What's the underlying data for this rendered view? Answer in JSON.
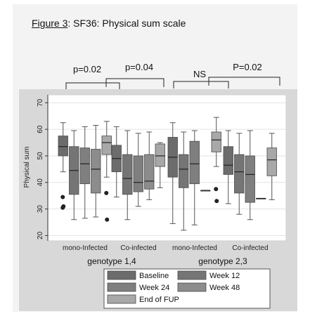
{
  "figure": {
    "label": "Figure 3",
    "caption": ": SF36: Physical sum scale"
  },
  "comparisons": [
    {
      "label": "p=0.02"
    },
    {
      "label": "p=0.04"
    },
    {
      "label": "NS"
    },
    {
      "label": "P=0.02"
    }
  ],
  "chart_data": {
    "type": "box",
    "ylabel": "Physical sum",
    "ylim": [
      18,
      73
    ],
    "yticks": [
      20,
      30,
      40,
      50,
      60,
      70
    ],
    "grid": true,
    "legend_position": "bottom",
    "groups": [
      {
        "label": "mono-Infected",
        "genotype": "genotype 1,4"
      },
      {
        "label": "Co-infected",
        "genotype": "genotype 1,4"
      },
      {
        "label": "mono-Infected",
        "genotype": "genotype 2,3"
      },
      {
        "label": "Co-infected",
        "genotype": "genotype 2,3"
      }
    ],
    "genotype_labels": [
      "genotype 1,4",
      "genotype 2,3"
    ],
    "series": [
      {
        "name": "Baseline",
        "color": "#6c6c6c"
      },
      {
        "name": "Week 12",
        "color": "#757575"
      },
      {
        "name": "Week 24",
        "color": "#7f7f7f"
      },
      {
        "name": "Week 48",
        "color": "#8c8c8c"
      },
      {
        "name": "End of FUP",
        "color": "#a8a8a8"
      }
    ],
    "boxes": [
      {
        "group": 0,
        "series": "Baseline",
        "min": 44,
        "q1": 50,
        "median": 53.5,
        "q3": 57.5,
        "max": 62.5,
        "outliers": [
          34.5,
          31,
          30.5
        ]
      },
      {
        "group": 0,
        "series": "Week 12",
        "min": 26,
        "q1": 35.5,
        "median": 44.5,
        "q3": 53.5,
        "max": 59.5,
        "outliers": []
      },
      {
        "group": 0,
        "series": "Week 24",
        "min": 26.5,
        "q1": 39.5,
        "median": 47,
        "q3": 53,
        "max": 61,
        "outliers": []
      },
      {
        "group": 0,
        "series": "Week 48",
        "min": 27,
        "q1": 36,
        "median": 45,
        "q3": 52.5,
        "max": 61.5,
        "outliers": []
      },
      {
        "group": 0,
        "series": "End of FUP",
        "min": 42,
        "q1": 50.5,
        "median": 55,
        "q3": 57.5,
        "max": 63,
        "outliers": [
          36,
          26
        ]
      },
      {
        "group": 1,
        "series": "Baseline",
        "min": 34.5,
        "q1": 44,
        "median": 49,
        "q3": 54,
        "max": 61,
        "outliers": []
      },
      {
        "group": 1,
        "series": "Week 12",
        "min": 26,
        "q1": 35.5,
        "median": 41.5,
        "q3": 50.5,
        "max": 59.5,
        "outliers": []
      },
      {
        "group": 1,
        "series": "Week 24",
        "min": 31,
        "q1": 36.5,
        "median": 40,
        "q3": 50,
        "max": 58.5,
        "outliers": []
      },
      {
        "group": 1,
        "series": "Week 48",
        "min": 33.5,
        "q1": 37.5,
        "median": 40.5,
        "q3": 50.5,
        "max": 59,
        "outliers": []
      },
      {
        "group": 1,
        "series": "End of FUP",
        "min": 38,
        "q1": 46,
        "median": 50,
        "q3": 54.5,
        "max": 55,
        "outliers": []
      },
      {
        "group": 2,
        "series": "Baseline",
        "min": 24.5,
        "q1": 42,
        "median": 49.5,
        "q3": 57,
        "max": 62.5,
        "outliers": []
      },
      {
        "group": 2,
        "series": "Week 12",
        "min": 22,
        "q1": 38,
        "median": 45,
        "q3": 50.5,
        "max": 59,
        "outliers": []
      },
      {
        "group": 2,
        "series": "Week 24",
        "min": 24,
        "q1": 39.5,
        "median": 47,
        "q3": 55.5,
        "max": 59.5,
        "outliers": []
      },
      {
        "group": 2,
        "series": "Week 48",
        "min": 37,
        "q1": 37,
        "median": 37,
        "q3": 37,
        "max": 37,
        "outliers": []
      },
      {
        "group": 2,
        "series": "End of FUP",
        "min": 46,
        "q1": 51.5,
        "median": 56,
        "q3": 59,
        "max": 64.5,
        "outliers": [
          37.5,
          33
        ]
      },
      {
        "group": 3,
        "series": "Baseline",
        "min": 32,
        "q1": 43,
        "median": 46.5,
        "q3": 53.5,
        "max": 59.5,
        "outliers": []
      },
      {
        "group": 3,
        "series": "Week 12",
        "min": 28,
        "q1": 36,
        "median": 44,
        "q3": 50.5,
        "max": 58.5,
        "outliers": []
      },
      {
        "group": 3,
        "series": "Week 24",
        "min": 26,
        "q1": 32.5,
        "median": 43,
        "q3": 50,
        "max": 59.5,
        "outliers": []
      },
      {
        "group": 3,
        "series": "Week 48",
        "min": 34,
        "q1": 34,
        "median": 34,
        "q3": 34,
        "max": 34,
        "outliers": []
      },
      {
        "group": 3,
        "series": "End of FUP",
        "min": 33.5,
        "q1": 42.5,
        "median": 48.5,
        "q3": 53,
        "max": 58.5,
        "outliers": []
      }
    ]
  }
}
